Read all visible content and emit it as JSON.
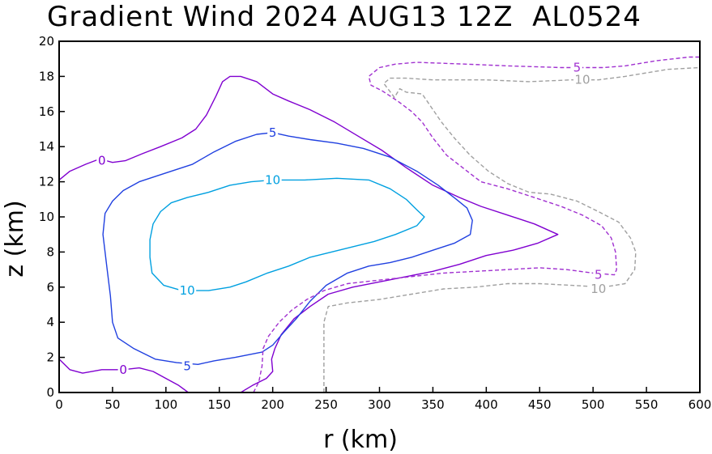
{
  "chart_data": {
    "type": "contour",
    "title": "Gradient Wind 2024 AUG13 12Z  AL0524",
    "xlabel": "r (km)",
    "ylabel": "z (km)",
    "xlim": [
      0,
      600
    ],
    "ylim": [
      0,
      20
    ],
    "xticks": [
      "0",
      "50",
      "100",
      "150",
      "200",
      "250",
      "300",
      "350",
      "400",
      "450",
      "500",
      "550",
      "600"
    ],
    "yticks": [
      "0",
      "2",
      "4",
      "6",
      "8",
      "10",
      "12",
      "14",
      "16",
      "18",
      "20"
    ],
    "grid": false,
    "contours": [
      {
        "level": "0",
        "color": "#8000d0",
        "style": "solid",
        "paths": [
          [
            [
              0,
              12.1
            ],
            [
              10,
              12.6
            ],
            [
              25,
              13.0
            ],
            [
              38,
              13.3
            ],
            [
              50,
              13.1
            ],
            [
              62,
              13.2
            ],
            [
              78,
              13.6
            ],
            [
              95,
              14.0
            ],
            [
              115,
              14.5
            ],
            [
              128,
              15.0
            ],
            [
              138,
              15.8
            ],
            [
              147,
              16.9
            ],
            [
              153,
              17.7
            ],
            [
              160,
              18.0
            ],
            [
              170,
              18.0
            ],
            [
              185,
              17.7
            ],
            [
              200,
              17.0
            ],
            [
              215,
              16.6
            ],
            [
              235,
              16.1
            ],
            [
              258,
              15.4
            ],
            [
              280,
              14.6
            ],
            [
              302,
              13.8
            ],
            [
              325,
              12.8
            ],
            [
              350,
              11.8
            ],
            [
              375,
              11.1
            ],
            [
              395,
              10.6
            ],
            [
              420,
              10.1
            ],
            [
              445,
              9.6
            ],
            [
              467,
              9.0
            ],
            [
              448,
              8.5
            ],
            [
              425,
              8.1
            ],
            [
              400,
              7.8
            ],
            [
              375,
              7.3
            ],
            [
              350,
              6.9
            ],
            [
              325,
              6.6
            ],
            [
              300,
              6.3
            ],
            [
              275,
              6.0
            ],
            [
              252,
              5.6
            ],
            [
              235,
              4.9
            ],
            [
              220,
              4.2
            ],
            [
              208,
              3.3
            ],
            [
              202,
              2.5
            ],
            [
              199,
              1.9
            ],
            [
              200,
              1.2
            ],
            [
              194,
              0.8
            ],
            [
              181,
              0.4
            ],
            [
              170,
              0
            ]
          ],
          [
            [
              0,
              1.9
            ],
            [
              10,
              1.3
            ],
            [
              22,
              1.1
            ],
            [
              40,
              1.3
            ],
            [
              60,
              1.3
            ],
            [
              75,
              1.4
            ],
            [
              88,
              1.2
            ],
            [
              100,
              0.8
            ],
            [
              112,
              0.4
            ],
            [
              121,
              0
            ]
          ]
        ],
        "labels": [
          {
            "text": "0",
            "x": 40,
            "y": 13.2
          },
          {
            "text": "0",
            "x": 60,
            "y": 1.3
          }
        ]
      },
      {
        "level": "5",
        "color": "#2040e0",
        "style": "solid",
        "paths": [
          [
            [
              145,
              1.8
            ],
            [
              130,
              1.6
            ],
            [
              110,
              1.7
            ],
            [
              90,
              1.9
            ],
            [
              70,
              2.5
            ],
            [
              55,
              3.1
            ],
            [
              50,
              4.0
            ],
            [
              48,
              5.5
            ],
            [
              45,
              7.0
            ],
            [
              41,
              9.0
            ],
            [
              43,
              10.2
            ],
            [
              50,
              10.9
            ],
            [
              60,
              11.5
            ],
            [
              75,
              12.0
            ],
            [
              90,
              12.3
            ],
            [
              105,
              12.6
            ],
            [
              125,
              13.0
            ],
            [
              145,
              13.7
            ],
            [
              165,
              14.3
            ],
            [
              185,
              14.7
            ],
            [
              200,
              14.8
            ],
            [
              215,
              14.6
            ],
            [
              235,
              14.4
            ],
            [
              260,
              14.2
            ],
            [
              285,
              13.9
            ],
            [
              310,
              13.4
            ],
            [
              335,
              12.6
            ],
            [
              355,
              11.8
            ],
            [
              372,
              11.0
            ],
            [
              382,
              10.5
            ],
            [
              387,
              9.8
            ],
            [
              385,
              9.0
            ],
            [
              370,
              8.5
            ],
            [
              350,
              8.1
            ],
            [
              330,
              7.7
            ],
            [
              310,
              7.4
            ],
            [
              290,
              7.2
            ],
            [
              270,
              6.8
            ],
            [
              250,
              6.1
            ],
            [
              235,
              5.2
            ],
            [
              222,
              4.2
            ],
            [
              210,
              3.4
            ],
            [
              200,
              2.7
            ],
            [
              190,
              2.3
            ],
            [
              165,
              2.0
            ],
            [
              145,
              1.8
            ]
          ]
        ],
        "labels": [
          {
            "text": "5",
            "x": 200,
            "y": 14.8
          },
          {
            "text": "5",
            "x": 120,
            "y": 1.5
          }
        ]
      },
      {
        "level": "10",
        "color": "#00a0e0",
        "style": "solid",
        "paths": [
          [
            [
              115,
              5.8
            ],
            [
              98,
              6.1
            ],
            [
              87,
              6.8
            ],
            [
              85,
              7.7
            ],
            [
              85,
              8.7
            ],
            [
              88,
              9.6
            ],
            [
              95,
              10.3
            ],
            [
              105,
              10.8
            ],
            [
              120,
              11.1
            ],
            [
              140,
              11.4
            ],
            [
              160,
              11.8
            ],
            [
              180,
              12.0
            ],
            [
              200,
              12.1
            ],
            [
              230,
              12.1
            ],
            [
              260,
              12.2
            ],
            [
              290,
              12.1
            ],
            [
              310,
              11.6
            ],
            [
              325,
              11.0
            ],
            [
              335,
              10.4
            ],
            [
              342,
              10.0
            ],
            [
              335,
              9.5
            ],
            [
              315,
              9.0
            ],
            [
              295,
              8.6
            ],
            [
              275,
              8.3
            ],
            [
              255,
              8.0
            ],
            [
              235,
              7.7
            ],
            [
              215,
              7.2
            ],
            [
              195,
              6.8
            ],
            [
              175,
              6.3
            ],
            [
              160,
              6.0
            ],
            [
              140,
              5.8
            ],
            [
              115,
              5.8
            ]
          ]
        ],
        "labels": [
          {
            "text": "10",
            "x": 200,
            "y": 12.1
          },
          {
            "text": "10",
            "x": 120,
            "y": 5.8
          }
        ]
      },
      {
        "level": "5",
        "color": "#a030d0",
        "style": "dashed",
        "paths": [
          [
            [
              182,
              0
            ],
            [
              187,
              0.6
            ],
            [
              190,
              1.5
            ],
            [
              191,
              2.5
            ],
            [
              196,
              3.2
            ],
            [
              206,
              4.0
            ],
            [
              218,
              4.7
            ],
            [
              232,
              5.3
            ],
            [
              248,
              5.8
            ],
            [
              270,
              6.2
            ],
            [
              300,
              6.4
            ],
            [
              330,
              6.6
            ],
            [
              360,
              6.8
            ],
            [
              390,
              6.9
            ],
            [
              420,
              7.0
            ],
            [
              450,
              7.1
            ],
            [
              475,
              7.0
            ],
            [
              500,
              6.8
            ],
            [
              520,
              6.7
            ],
            [
              522,
              7.0
            ],
            [
              521,
              8.0
            ],
            [
              517,
              8.8
            ],
            [
              508,
              9.5
            ],
            [
              490,
              10.1
            ],
            [
              470,
              10.6
            ],
            [
              445,
              11.1
            ],
            [
              420,
              11.6
            ],
            [
              395,
              12.0
            ],
            [
              380,
              12.7
            ],
            [
              363,
              13.5
            ],
            [
              350,
              14.5
            ],
            [
              340,
              15.4
            ],
            [
              330,
              16.0
            ],
            [
              317,
              16.6
            ],
            [
              302,
              17.2
            ],
            [
              292,
              17.5
            ],
            [
              290,
              18.0
            ],
            [
              300,
              18.5
            ],
            [
              315,
              18.7
            ],
            [
              335,
              18.8
            ],
            [
              380,
              18.7
            ],
            [
              420,
              18.6
            ],
            [
              470,
              18.5
            ],
            [
              495,
              18.5
            ],
            [
              510,
              18.5
            ],
            [
              530,
              18.6
            ],
            [
              560,
              18.9
            ],
            [
              590,
              19.1
            ],
            [
              600,
              19.1
            ]
          ]
        ],
        "labels": [
          {
            "text": "5",
            "x": 485,
            "y": 18.5
          },
          {
            "text": "5",
            "x": 505,
            "y": 6.7
          }
        ]
      },
      {
        "level": "10",
        "color": "#a0a0a0",
        "style": "dashed",
        "paths": [
          [
            [
              248,
              0
            ],
            [
              248,
              2.0
            ],
            [
              248,
              4.0
            ],
            [
              252,
              4.9
            ],
            [
              270,
              5.1
            ],
            [
              300,
              5.3
            ],
            [
              330,
              5.6
            ],
            [
              360,
              5.9
            ],
            [
              390,
              6.0
            ],
            [
              420,
              6.2
            ],
            [
              450,
              6.2
            ],
            [
              480,
              6.1
            ],
            [
              510,
              6.0
            ],
            [
              530,
              6.2
            ],
            [
              539,
              7.0
            ],
            [
              540,
              8.0
            ],
            [
              535,
              8.8
            ],
            [
              524,
              9.7
            ],
            [
              505,
              10.3
            ],
            [
              485,
              10.9
            ],
            [
              460,
              11.3
            ],
            [
              440,
              11.4
            ],
            [
              420,
              11.9
            ],
            [
              402,
              12.6
            ],
            [
              385,
              13.5
            ],
            [
              370,
              14.5
            ],
            [
              358,
              15.4
            ],
            [
              349,
              16.2
            ],
            [
              340,
              17.0
            ],
            [
              325,
              17.1
            ],
            [
              319,
              17.3
            ],
            [
              314,
              16.8
            ],
            [
              304,
              17.6
            ],
            [
              310,
              17.9
            ],
            [
              325,
              17.9
            ],
            [
              350,
              17.8
            ],
            [
              400,
              17.8
            ],
            [
              440,
              17.7
            ],
            [
              480,
              17.8
            ],
            [
              505,
              17.8
            ],
            [
              530,
              18.0
            ],
            [
              570,
              18.4
            ],
            [
              600,
              18.5
            ]
          ]
        ],
        "labels": [
          {
            "text": "10",
            "x": 490,
            "y": 17.8
          },
          {
            "text": "10",
            "x": 505,
            "y": 5.9
          }
        ]
      }
    ]
  }
}
